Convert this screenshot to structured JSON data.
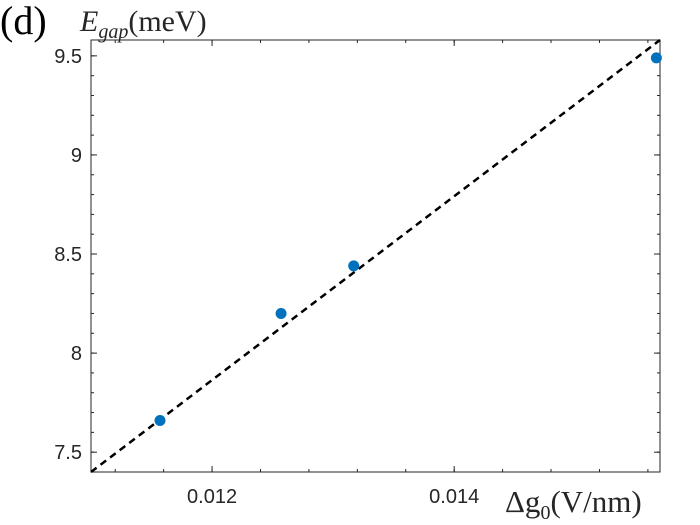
{
  "panel_label": "(d)",
  "chart_data": {
    "type": "scatter",
    "ylabel": {
      "symbol": "E",
      "subscript": "gap",
      "unit": "(meV)"
    },
    "xlabel": {
      "symbol": "Δg",
      "subscript": "0",
      "unit": "(V/nm)"
    },
    "xlim": [
      0.011,
      0.0157
    ],
    "ylim": [
      7.4,
      9.58
    ],
    "xticks": [
      0.012,
      0.014
    ],
    "xtick_labels": [
      "0.012",
      "0.014"
    ],
    "yticks": [
      7.5,
      8,
      8.5,
      9,
      9.5
    ],
    "ytick_labels": [
      "7.5",
      "8",
      "8.5",
      "9",
      "9.5"
    ],
    "points": [
      {
        "x": 0.01157,
        "y": 7.66
      },
      {
        "x": 0.01257,
        "y": 8.2
      },
      {
        "x": 0.01317,
        "y": 8.44
      },
      {
        "x": 0.01567,
        "y": 9.49
      }
    ],
    "fit_line": {
      "x": [
        0.011,
        0.0157
      ],
      "y": [
        7.4,
        9.58
      ],
      "style": "dashed",
      "color": "#000000"
    },
    "marker_color": "#0072BD",
    "grid": false
  }
}
